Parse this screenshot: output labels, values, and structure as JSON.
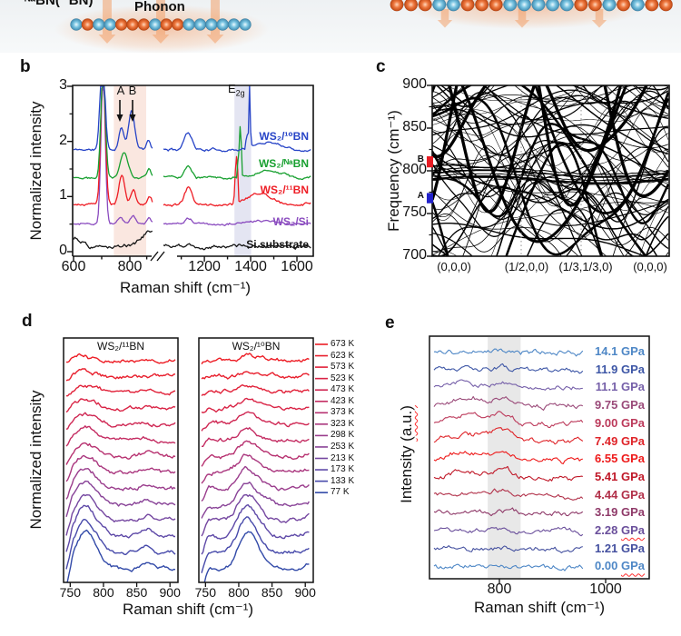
{
  "panel_a": {
    "label_fragment": "ᴺᵃBN(¹¹BN)",
    "phonon_label": "Phonon",
    "atom_colors": {
      "orange": "#e0632f",
      "blue": "#66b9d9"
    },
    "arrow_color": "#f2a06a"
  },
  "chart_data": [
    {
      "panel_letter": "b",
      "type": "line",
      "ylabel": "Normalized intensity",
      "xlabel": "Raman shift (cm⁻¹)",
      "yticks": [
        0,
        1,
        2,
        3
      ],
      "xticks_low": [
        600,
        800
      ],
      "xticks_high": [
        1200,
        1400,
        1600
      ],
      "xbreak": [
        880,
        1023
      ],
      "ylim": [
        0,
        3.1
      ],
      "annotations": {
        "a": "A",
        "b": "B",
        "e2g_main": "E",
        "e2g_sub": "2g"
      },
      "shaded_regions": [
        {
          "range": [
            743,
            858
          ],
          "color": "#fae7e0"
        },
        {
          "range": [
            1330,
            1402
          ],
          "color": "#e4e5f2"
        }
      ],
      "series": [
        {
          "label": "WS₂/¹⁰BN",
          "color": "#2744c7",
          "offset": 1.85,
          "seed": 11,
          "noise": 0.016,
          "peaks": [
            [
              703,
              1.9,
              8
            ],
            [
              770,
              0.4,
              9
            ],
            [
              806,
              0.7,
              11
            ],
            [
              866,
              0.18,
              6
            ],
            [
              1130,
              0.32,
              17
            ],
            [
              1383,
              0.3,
              2.8
            ],
            [
              1395,
              1.1,
              3
            ],
            [
              1480,
              0.14,
              55
            ]
          ]
        },
        {
          "label": "WS₂/ᴺᵃBN",
          "color": "#18a030",
          "offset": 1.35,
          "seed": 22,
          "noise": 0.016,
          "peaks": [
            [
              705,
              1.95,
              8
            ],
            [
              779,
              0.48,
              13
            ],
            [
              868,
              0.14,
              6
            ],
            [
              1130,
              0.22,
              16
            ],
            [
              1347,
              0.5,
              2.6
            ],
            [
              1356,
              1.05,
              3.2
            ],
            [
              1480,
              0.1,
              55
            ]
          ]
        },
        {
          "label": "WS₂/¹¹BN",
          "color": "#ee1c24",
          "offset": 0.85,
          "seed": 33,
          "noise": 0.018,
          "peaks": [
            [
              705,
              2.5,
              8
            ],
            [
              772,
              0.55,
              10
            ],
            [
              812,
              0.25,
              9
            ],
            [
              870,
              0.16,
              7
            ],
            [
              1130,
              0.32,
              16
            ],
            [
              1333,
              0.55,
              2.6
            ],
            [
              1341,
              1.0,
              3
            ],
            [
              1445,
              0.2,
              50
            ]
          ]
        },
        {
          "label": "WS₂/Si",
          "color": "#8a4bbf",
          "offset": 0.5,
          "seed": 44,
          "noise": 0.014,
          "peaks": [
            [
              705,
              2.7,
              7.5
            ],
            [
              768,
              0.12,
              9
            ],
            [
              812,
              0.14,
              10
            ],
            [
              868,
              0.1,
              7
            ],
            [
              1130,
              0.12,
              15
            ],
            [
              1460,
              0.06,
              60
            ]
          ]
        },
        {
          "label": "Si substrate",
          "color": "#151515",
          "offset": 0.1,
          "seed": 55,
          "noise": 0.022,
          "peaks": [
            [
              608,
              0.16,
              10
            ],
            [
              638,
              0.1,
              9
            ],
            [
              872,
              0.26,
              32
            ]
          ]
        }
      ]
    },
    {
      "panel_letter": "c",
      "type": "line",
      "ylabel": "Frequency (cm⁻¹)",
      "ylim": [
        700,
        900
      ],
      "yticks": [
        700,
        750,
        800,
        850,
        900
      ],
      "xlabels": [
        "(0,0,0)",
        "(1/2,0,0)",
        "(1/3,1/3,0)",
        "(0,0,0)"
      ],
      "marker_a": {
        "label": "A",
        "color": "#2222cc",
        "freq_range": [
          762,
          774
        ]
      },
      "marker_b": {
        "label": "B",
        "color": "#e81c24",
        "freq_range": [
          804,
          817
        ]
      },
      "band_seed": 9,
      "band_count": 62
    },
    {
      "panel_letter": "d",
      "type": "line",
      "ylabel": "Normalized intensity",
      "xlabel": "Raman shift (cm⁻¹)",
      "xticks": [
        750,
        800,
        850,
        900
      ],
      "xlim": [
        740,
        912
      ],
      "subpanels": [
        {
          "title": "WS₂/¹¹BN",
          "peak_center": 772
        },
        {
          "title": "WS₂/¹⁰BN",
          "peak_center": 812
        }
      ],
      "legend": [
        {
          "label": "673 K",
          "color": "#ed1c24"
        },
        {
          "label": "623 K",
          "color": "#e81e2c"
        },
        {
          "label": "573 K",
          "color": "#e12038"
        },
        {
          "label": "523 K",
          "color": "#d92345"
        },
        {
          "label": "473 K",
          "color": "#cf2753"
        },
        {
          "label": "423 K",
          "color": "#c42c62"
        },
        {
          "label": "373 K",
          "color": "#b73170"
        },
        {
          "label": "323 K",
          "color": "#aa367e"
        },
        {
          "label": "298 K",
          "color": "#9a3c8c"
        },
        {
          "label": "253 K",
          "color": "#884297"
        },
        {
          "label": "213 K",
          "color": "#7446a0"
        },
        {
          "label": "173 K",
          "color": "#5d48a7"
        },
        {
          "label": "133 K",
          "color": "#4649aa"
        },
        {
          "label": "77 K",
          "color": "#3149a8"
        }
      ]
    },
    {
      "panel_letter": "e",
      "type": "line",
      "ylabel_main": "Intensity ",
      "ylabel_au": "(a.u.)",
      "xlabel": "Raman shift (cm⁻¹)",
      "xticks": [
        800,
        1000
      ],
      "xlim": [
        668,
        955
      ],
      "shaded_region": [
        778,
        840
      ],
      "series": [
        {
          "value": "14.1",
          "unit": "GPa",
          "color": "#4e87c6",
          "squiggle": false,
          "peak": 0.15
        },
        {
          "value": "11.9",
          "unit": "GPa",
          "color": "#3d56a6",
          "squiggle": false,
          "peak": 0.25
        },
        {
          "value": "11.1",
          "unit": "GPa",
          "color": "#7660a9",
          "squiggle": false,
          "peak": 0.5
        },
        {
          "value": "9.75",
          "unit": "GPa",
          "color": "#9a4a79",
          "squiggle": false,
          "peak": 0.75
        },
        {
          "value": "9.00",
          "unit": "GPa",
          "color": "#bc3a5b",
          "squiggle": false,
          "peak": 0.95
        },
        {
          "value": "7.49",
          "unit": "GPa",
          "color": "#df2429",
          "squiggle": false,
          "peak": 1.0
        },
        {
          "value": "6.55",
          "unit": "GPa",
          "color": "#ee1a1a",
          "squiggle": false,
          "peak": 0.9
        },
        {
          "value": "5.41",
          "unit": "GPa",
          "color": "#c01828",
          "squiggle": false,
          "peak": 0.7
        },
        {
          "value": "4.44",
          "unit": "GPa",
          "color": "#b13049",
          "squiggle": false,
          "peak": 0.45
        },
        {
          "value": "3.19",
          "unit": "GPa",
          "color": "#8f3a69",
          "squiggle": false,
          "peak": 0.3
        },
        {
          "value": "2.28",
          "unit": "GPa",
          "color": "#6a4f9b",
          "squiggle": true,
          "peak": 0.15
        },
        {
          "value": "1.21",
          "unit": "GPa",
          "color": "#44509f",
          "squiggle": false,
          "peak": 0.1
        },
        {
          "value": "0.00",
          "unit": "GPa",
          "color": "#4e87c6",
          "squiggle": true,
          "peak": 0.12
        }
      ]
    }
  ]
}
